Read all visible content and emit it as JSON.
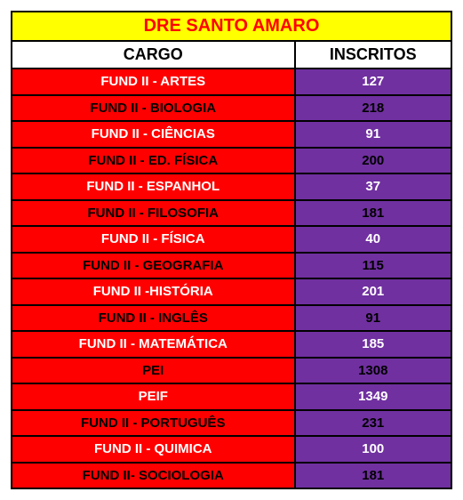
{
  "title": "DRE SANTO AMARO",
  "title_bg": "#ffff00",
  "title_color": "#ff0000",
  "columns": [
    {
      "label": "CARGO",
      "key": "cargo"
    },
    {
      "label": "INSCRITOS",
      "key": "inscritos"
    }
  ],
  "cargo_bg": "#ff0000",
  "inscritos_bg": "#7030a0",
  "rows": [
    {
      "cargo": "FUND II - ARTES",
      "cargo_color": "#ffffff",
      "inscritos": "127",
      "inscritos_color": "#ffffff"
    },
    {
      "cargo": "FUND II - BIOLOGIA",
      "cargo_color": "#000000",
      "inscritos": "218",
      "inscritos_color": "#000000"
    },
    {
      "cargo": "FUND II - CIÊNCIAS",
      "cargo_color": "#ffffff",
      "inscritos": "91",
      "inscritos_color": "#ffffff"
    },
    {
      "cargo": "FUND II - ED. FÍSICA",
      "cargo_color": "#000000",
      "inscritos": "200",
      "inscritos_color": "#000000"
    },
    {
      "cargo": "FUND II - ESPANHOL",
      "cargo_color": "#ffffff",
      "inscritos": "37",
      "inscritos_color": "#ffffff"
    },
    {
      "cargo": "FUND II - FILOSOFIA",
      "cargo_color": "#000000",
      "inscritos": "181",
      "inscritos_color": "#000000"
    },
    {
      "cargo": "FUND II - FÍSICA",
      "cargo_color": "#ffffff",
      "inscritos": "40",
      "inscritos_color": "#ffffff"
    },
    {
      "cargo": "FUND II - GEOGRAFIA",
      "cargo_color": "#000000",
      "inscritos": "115",
      "inscritos_color": "#000000"
    },
    {
      "cargo": "FUND II -HISTÓRIA",
      "cargo_color": "#ffffff",
      "inscritos": "201",
      "inscritos_color": "#ffffff"
    },
    {
      "cargo": "FUND II - INGLÊS",
      "cargo_color": "#000000",
      "inscritos": "91",
      "inscritos_color": "#000000"
    },
    {
      "cargo": "FUND II - MATEMÁTICA",
      "cargo_color": "#ffffff",
      "inscritos": "185",
      "inscritos_color": "#ffffff"
    },
    {
      "cargo": "PEI",
      "cargo_color": "#000000",
      "inscritos": "1308",
      "inscritos_color": "#000000"
    },
    {
      "cargo": "PEIF",
      "cargo_color": "#ffffff",
      "inscritos": "1349",
      "inscritos_color": "#ffffff"
    },
    {
      "cargo": "FUND II - PORTUGUÊS",
      "cargo_color": "#000000",
      "inscritos": "231",
      "inscritos_color": "#000000"
    },
    {
      "cargo": "FUND II - QUIMICA",
      "cargo_color": "#ffffff",
      "inscritos": "100",
      "inscritos_color": "#ffffff"
    },
    {
      "cargo": "FUND II- SOCIOLOGIA",
      "cargo_color": "#000000",
      "inscritos": "181",
      "inscritos_color": "#000000"
    }
  ]
}
